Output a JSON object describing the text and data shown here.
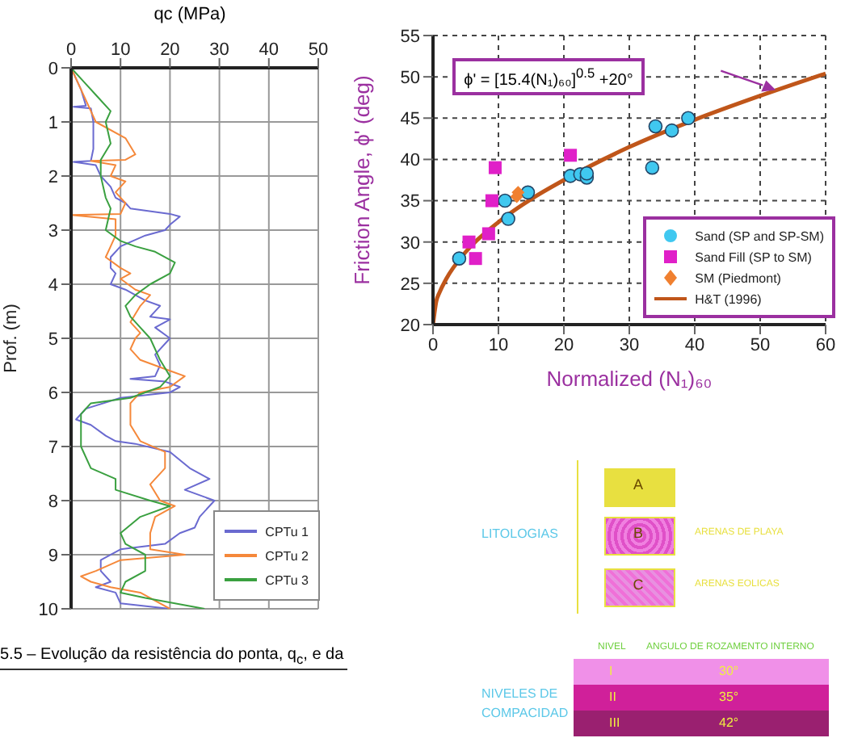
{
  "chart_data": [
    {
      "type": "line",
      "xlabel": "qc (MPa)",
      "ylabel": "Prof. (m)",
      "xlim": [
        0,
        50
      ],
      "xticks": [
        0,
        10,
        20,
        30,
        40,
        50
      ],
      "ylim": [
        10,
        0
      ],
      "yticks": [
        0,
        1,
        2,
        3,
        4,
        5,
        6,
        7,
        8,
        9,
        10
      ],
      "grid": true,
      "legend": "bottom right",
      "marker": "none",
      "annotations": [
        "5.5 – Evolução da resistência do ponta, q$_{c}$, e da"
      ],
      "series": [
        {
          "name": "CPTu 1",
          "color": "#6a6ad0",
          "x": [
            0,
            2,
            3,
            0.5,
            4,
            4.5,
            4.5,
            4,
            0.5,
            5,
            6,
            8,
            9,
            11,
            12,
            20,
            22,
            20,
            19,
            15,
            10,
            8,
            8,
            9,
            8,
            11,
            15,
            18,
            16,
            20,
            17,
            20,
            17,
            18,
            17,
            12,
            19,
            22,
            20,
            10,
            3,
            1,
            4,
            7,
            9,
            13,
            20,
            24,
            28,
            23,
            29,
            26,
            25,
            22,
            19,
            10,
            6,
            6,
            8,
            5,
            9,
            10,
            20
          ],
          "values": [
            0,
            0.4,
            0.7,
            0.72,
            0.75,
            1.0,
            1.5,
            1.72,
            1.74,
            1.8,
            2.0,
            2.2,
            2.4,
            2.5,
            2.6,
            2.7,
            2.75,
            2.9,
            3.0,
            3.1,
            3.3,
            3.5,
            3.7,
            3.8,
            4.0,
            4.1,
            4.3,
            4.4,
            4.6,
            4.65,
            4.8,
            5.0,
            5.3,
            5.5,
            5.7,
            5.75,
            5.8,
            5.9,
            6.0,
            6.1,
            6.3,
            6.5,
            6.6,
            6.8,
            6.9,
            6.95,
            7.1,
            7.4,
            7.6,
            7.8,
            8.0,
            8.3,
            8.5,
            8.6,
            8.8,
            8.9,
            9.1,
            9.3,
            9.5,
            9.6,
            9.7,
            9.9,
            10
          ]
        },
        {
          "name": "CPTu 2",
          "color": "#f5883a",
          "x": [
            0,
            3,
            5,
            11,
            13,
            11,
            4,
            9,
            8,
            11,
            9,
            11,
            10,
            0,
            9,
            9,
            8,
            7,
            10,
            12,
            10,
            13,
            16,
            14,
            12,
            14,
            13,
            12,
            14,
            20,
            23,
            20,
            14,
            12,
            12,
            14,
            19,
            19,
            16,
            18,
            21,
            17,
            16,
            16,
            23,
            10,
            5,
            2,
            4,
            8,
            14,
            16,
            20
          ],
          "values": [
            0,
            0.6,
            1.0,
            1.3,
            1.6,
            1.7,
            1.72,
            1.8,
            2.0,
            2.1,
            2.3,
            2.5,
            2.7,
            2.72,
            2.8,
            3.1,
            3.3,
            3.5,
            3.7,
            3.8,
            3.9,
            4.1,
            4.2,
            4.4,
            4.7,
            4.9,
            5.0,
            5.2,
            5.4,
            5.6,
            5.7,
            5.9,
            6.0,
            6.2,
            6.6,
            6.9,
            7.1,
            7.4,
            7.7,
            8.0,
            8.1,
            8.3,
            8.6,
            8.9,
            9.0,
            9.1,
            9.3,
            9.4,
            9.5,
            9.6,
            9.7,
            9.8,
            10
          ]
        },
        {
          "name": "CPTu 3",
          "color": "#3aa040",
          "x": [
            0,
            3,
            5,
            8,
            7,
            8,
            6,
            6,
            7,
            8,
            7,
            10,
            13,
            17,
            21,
            20,
            16,
            13,
            11,
            12,
            14,
            16,
            18,
            20,
            18,
            12,
            4,
            2,
            2,
            4,
            9,
            9,
            16,
            20,
            14,
            10,
            11,
            15,
            15,
            11,
            10,
            15,
            27
          ],
          "values": [
            0,
            0.3,
            0.5,
            0.8,
            1.0,
            1.4,
            1.7,
            2.0,
            2.4,
            2.6,
            3.0,
            3.2,
            3.3,
            3.4,
            3.6,
            3.8,
            4.0,
            4.2,
            4.4,
            4.6,
            4.8,
            5.0,
            5.4,
            5.7,
            5.9,
            6.1,
            6.2,
            6.4,
            7.0,
            7.4,
            7.6,
            7.8,
            8.0,
            8.1,
            8.3,
            8.6,
            8.8,
            9.0,
            9.3,
            9.5,
            9.7,
            9.8,
            10
          ]
        }
      ]
    },
    {
      "type": "scatter",
      "xlabel": "Normalized (N₁)₆₀",
      "ylabel": "Friction Angle, ϕ' (deg)",
      "xlim": [
        0,
        60
      ],
      "xticks": [
        0,
        10,
        20,
        30,
        40,
        50,
        60
      ],
      "ylim": [
        20,
        55
      ],
      "yticks": [
        20,
        25,
        30,
        35,
        40,
        45,
        50,
        55
      ],
      "grid": true,
      "legend": "bottom right",
      "annotations": [
        "ϕ' = [15.4(N₁)₆₀]$^{0.5}$ +20°"
      ],
      "series": [
        {
          "name": "Sand (SP and SP-SM)",
          "color": "#40c8f0",
          "marker": "circle",
          "x": [
            4,
            11,
            11.5,
            14.5,
            21,
            22.5,
            23.5,
            23.5,
            33.5,
            34,
            36.5,
            39
          ],
          "values": [
            28,
            35,
            32.8,
            36,
            38,
            38.2,
            37.8,
            38.3,
            39,
            44,
            43.5,
            45
          ]
        },
        {
          "name": "Sand Fill (SP to SM)",
          "color": "#e020c8",
          "marker": "square",
          "x": [
            5.5,
            6.5,
            8.5,
            9,
            9.5,
            21
          ],
          "values": [
            30,
            28,
            31,
            35,
            39,
            40.5
          ]
        },
        {
          "name": "SM (Piedmont)",
          "color": "#f08030",
          "marker": "diamond",
          "x": [
            12.8,
            13
          ],
          "values": [
            35.5,
            36
          ]
        },
        {
          "name": "H&T (1996)",
          "type": "line",
          "color": "#c0561a",
          "marker": "none",
          "x": [
            0,
            0.5,
            1,
            2,
            5,
            10,
            15,
            20,
            30,
            40,
            50,
            60
          ],
          "values": [
            20,
            22.8,
            23.9,
            25.5,
            28.8,
            32.4,
            35.2,
            37.5,
            41.5,
            44.8,
            47.7,
            50.4
          ]
        }
      ]
    },
    {
      "type": "other",
      "annotations": [
        "LITOLOGIAS",
        "A",
        "B",
        "C",
        "ARENAS DE PLAYA",
        "ARENAS EOLICAS",
        "NIVELES DE COMPACIDAD",
        "NIVEL",
        "ANGULO DE ROZAMENTO INTERNO",
        "I",
        "II",
        "III",
        "30°",
        "35°",
        "42°"
      ]
    }
  ]
}
